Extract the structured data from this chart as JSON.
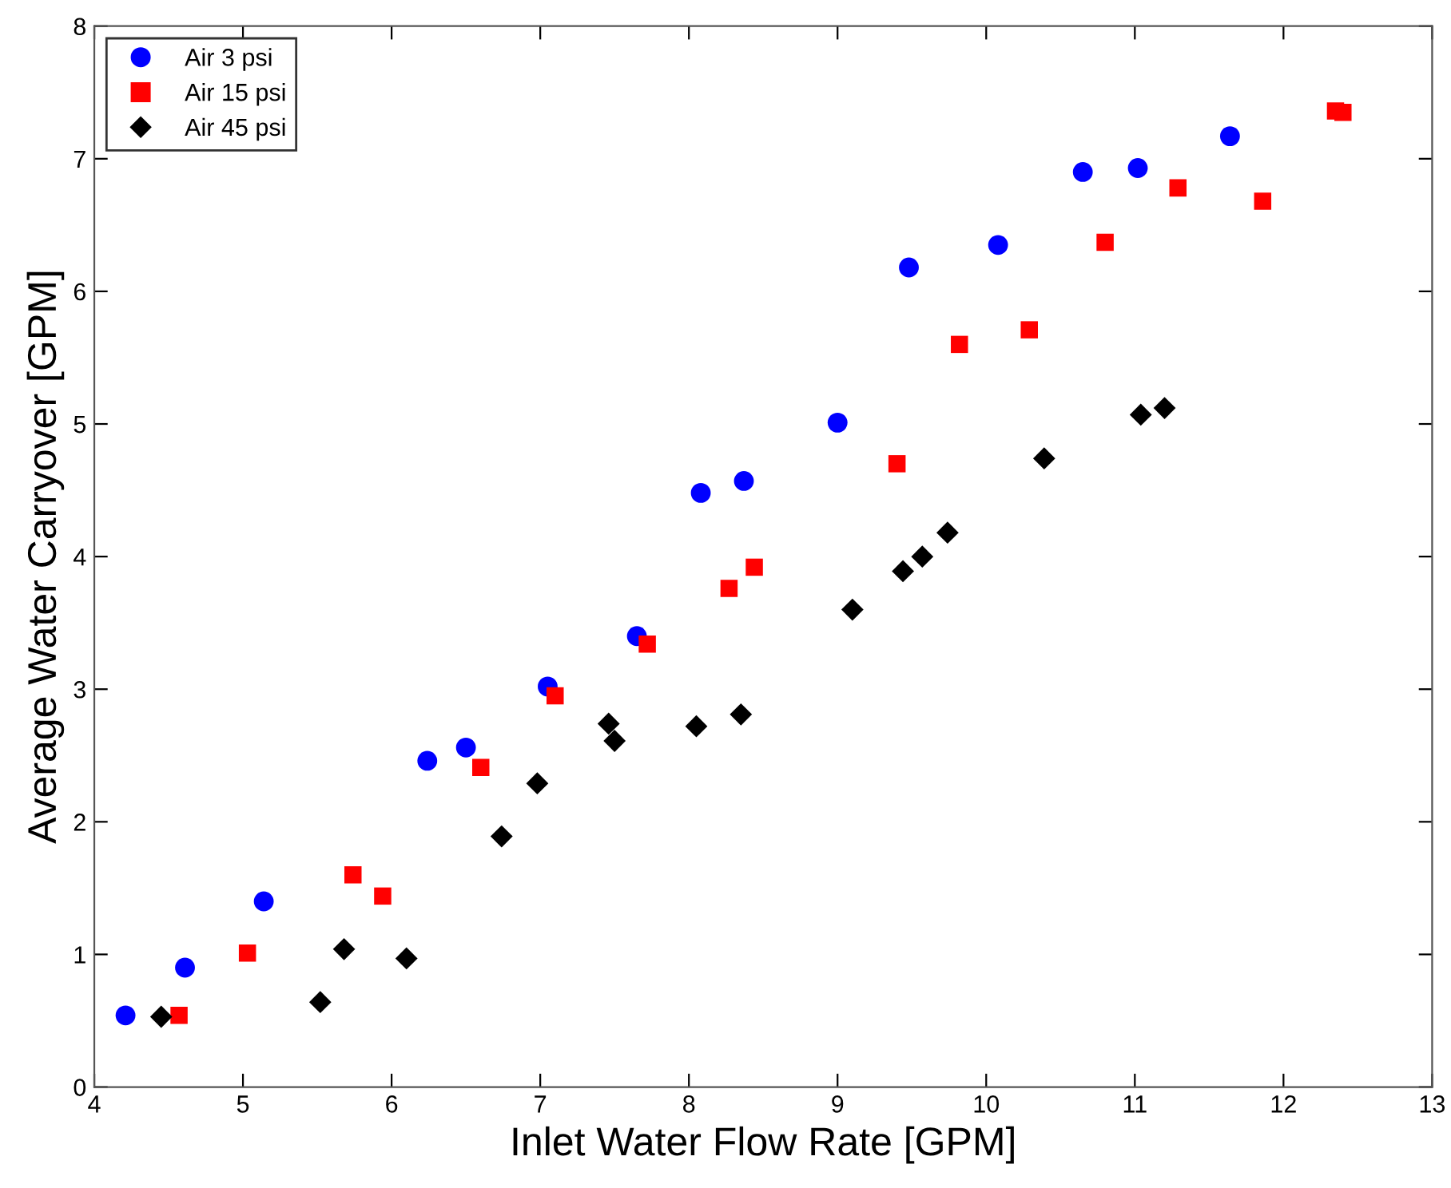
{
  "chart_data": {
    "type": "scatter",
    "xlabel": "Inlet Water Flow Rate [GPM]",
    "ylabel": "Average Water Carryover [GPM]",
    "xlim": [
      4,
      13
    ],
    "xticks": [
      4,
      5,
      6,
      7,
      8,
      9,
      10,
      11,
      12,
      13
    ],
    "ylim": [
      0,
      8
    ],
    "yticks": [
      0,
      1,
      2,
      3,
      4,
      5,
      6,
      7,
      8
    ],
    "grid": false,
    "legend": "top left",
    "series": [
      {
        "name": "Air 3 psi",
        "color": "#0000ff",
        "marker": "circle",
        "x": [
          4.21,
          4.61,
          5.14,
          6.24,
          6.5,
          7.05,
          7.65,
          8.08,
          8.37,
          9.0,
          9.48,
          10.08,
          10.65,
          11.02,
          11.64
        ],
        "values": [
          0.54,
          0.9,
          1.4,
          2.46,
          2.56,
          3.02,
          3.4,
          4.48,
          4.57,
          5.01,
          6.18,
          6.35,
          6.9,
          6.93,
          7.17
        ]
      },
      {
        "name": "Air 15 psi",
        "color": "#ff0000",
        "marker": "square",
        "x": [
          4.57,
          5.03,
          5.74,
          5.94,
          6.6,
          7.1,
          7.72,
          8.27,
          8.44,
          9.4,
          9.82,
          10.29,
          10.8,
          11.29,
          11.86,
          12.35,
          12.4
        ],
        "values": [
          0.54,
          1.01,
          1.6,
          1.44,
          2.41,
          2.95,
          3.34,
          3.76,
          3.92,
          4.7,
          5.6,
          5.71,
          6.37,
          6.78,
          6.68,
          7.36,
          7.35
        ]
      },
      {
        "name": "Air 45 psi",
        "color": "#000000",
        "marker": "diamond",
        "x": [
          4.45,
          5.52,
          5.68,
          6.1,
          6.74,
          6.98,
          7.46,
          7.5,
          8.05,
          8.35,
          9.1,
          9.44,
          9.57,
          9.74,
          10.39,
          11.04,
          11.2
        ],
        "values": [
          0.53,
          0.64,
          1.04,
          0.97,
          1.89,
          2.29,
          2.74,
          2.61,
          2.72,
          2.81,
          3.6,
          3.89,
          4.0,
          4.18,
          4.74,
          5.07,
          5.12
        ]
      }
    ]
  }
}
